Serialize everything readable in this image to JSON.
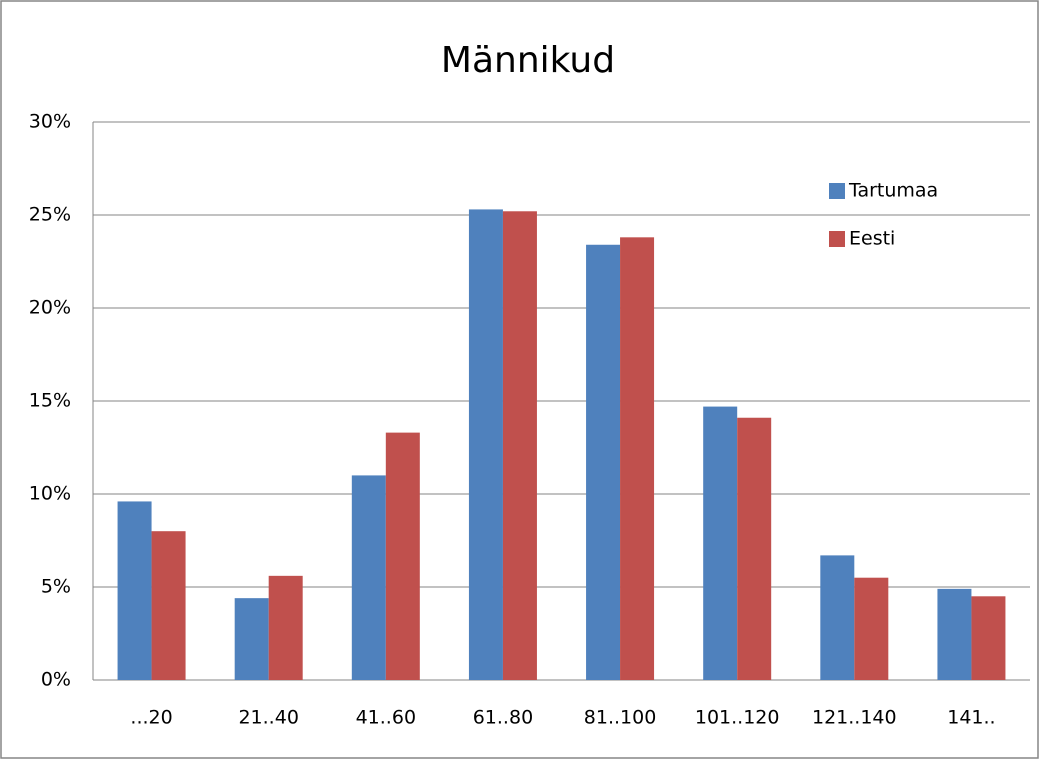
{
  "chart_data": {
    "type": "bar",
    "title": "Männikud",
    "categories": [
      "...20",
      "21..40",
      "41..60",
      "61..80",
      "81..100",
      "101..120",
      "121..140",
      "141.."
    ],
    "series": [
      {
        "name": "Tartumaa",
        "color": "#4f81bd",
        "values": [
          9.6,
          4.4,
          11.0,
          25.3,
          23.4,
          14.7,
          6.7,
          4.9
        ]
      },
      {
        "name": "Eesti",
        "color": "#c0504d",
        "values": [
          8.0,
          5.6,
          13.3,
          25.2,
          23.8,
          14.1,
          5.5,
          4.5
        ]
      }
    ],
    "ylim": [
      0,
      30
    ],
    "yticks": [
      {
        "value": 0,
        "label": "0%"
      },
      {
        "value": 5,
        "label": "5%"
      },
      {
        "value": 10,
        "label": "10%"
      },
      {
        "value": 15,
        "label": "15%"
      },
      {
        "value": 20,
        "label": "20%"
      },
      {
        "value": 25,
        "label": "25%"
      },
      {
        "value": 30,
        "label": "30%"
      }
    ],
    "grid": true,
    "legend": "upper right"
  }
}
